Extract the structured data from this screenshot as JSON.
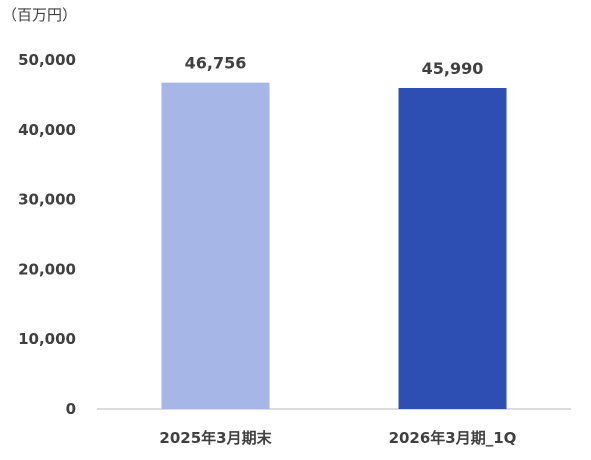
{
  "chart_data": {
    "type": "bar",
    "unit_label": "（百万円）",
    "categories": [
      "2025年3月期末",
      "2026年3月期_1Q"
    ],
    "values": [
      46756,
      45990
    ],
    "value_labels": [
      "46,756",
      "45,990"
    ],
    "bar_colors": [
      "#a6b6e6",
      "#2d4fb3"
    ],
    "ylim": [
      0,
      50000
    ],
    "yticks": [
      0,
      10000,
      20000,
      30000,
      40000,
      50000
    ],
    "ytick_labels": [
      "0",
      "10,000",
      "20,000",
      "30,000",
      "40,000",
      "50,000"
    ],
    "grid": false,
    "legend": "none"
  }
}
